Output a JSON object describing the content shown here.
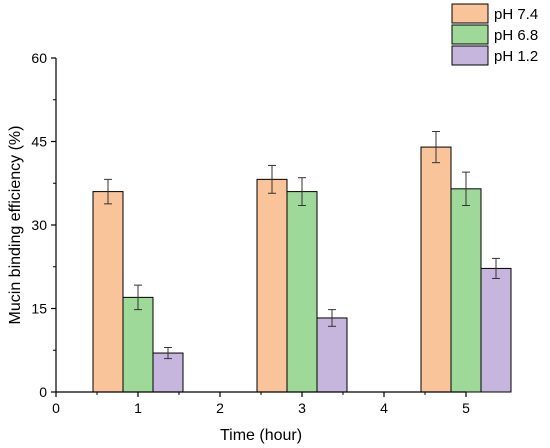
{
  "chart_data": {
    "type": "bar",
    "xlabel": "Time (hour)",
    "ylabel": "Mucin binding efficiency (%)",
    "xlim": [
      0,
      5
    ],
    "ylim": [
      0,
      60
    ],
    "xticks": [
      0,
      1,
      2,
      3,
      4,
      5
    ],
    "yticks": [
      0,
      15,
      30,
      45,
      60
    ],
    "xtick_labels": [
      "0",
      "1",
      "2",
      "3",
      "4",
      "5"
    ],
    "ytick_labels": [
      "0",
      "15",
      "30",
      "45",
      "60"
    ],
    "categories": [
      "1",
      "3",
      "5"
    ],
    "group_centers": [
      1,
      3,
      5
    ],
    "legend_position": "top-right",
    "series": [
      {
        "name": "pH 7.4",
        "color": "#f9c49a",
        "values": [
          36,
          38.2,
          44
        ],
        "errors": [
          2.2,
          2.5,
          2.8
        ]
      },
      {
        "name": "pH 6.8",
        "color": "#9ed99a",
        "values": [
          17,
          36,
          36.5
        ],
        "errors": [
          2.2,
          2.5,
          3.0
        ]
      },
      {
        "name": "pH 1.2",
        "color": "#c6b6dd",
        "values": [
          7,
          13.3,
          22.2
        ],
        "errors": [
          1.0,
          1.5,
          1.8
        ]
      }
    ]
  }
}
